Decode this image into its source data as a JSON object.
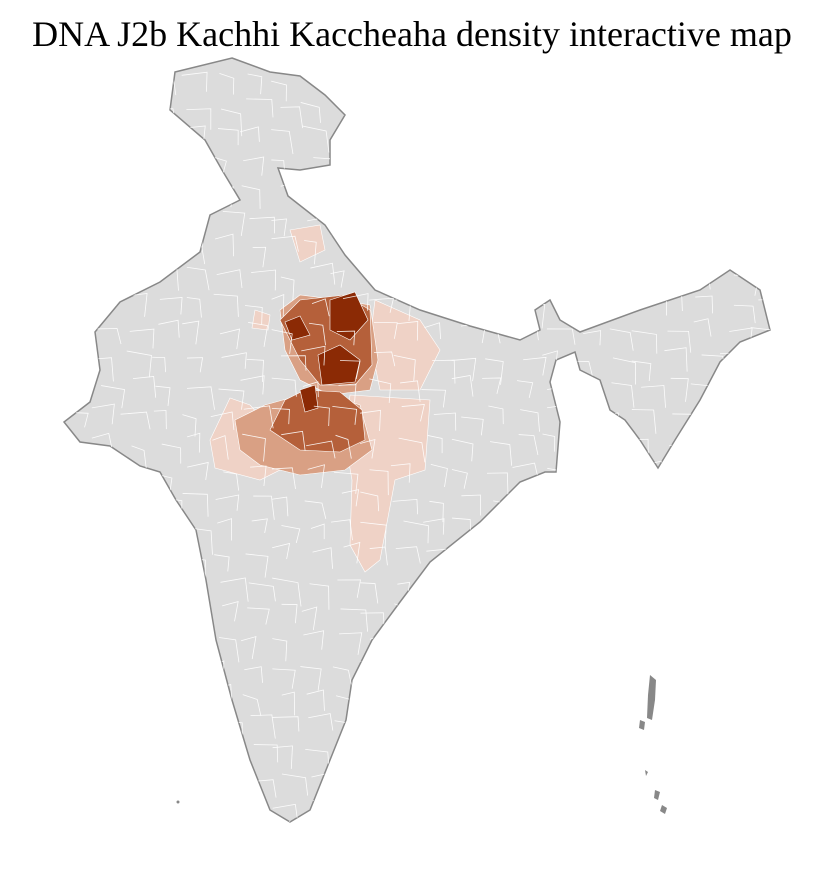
{
  "title": "DNA J2b Kachhi Kaccheaha density interactive map",
  "colors": {
    "land": "#dcdcdc",
    "border": "#888888",
    "district_lines": "#ffffff",
    "density_none": "#dcdcdc",
    "density_low": "#efd2c6",
    "density_mid_low": "#d9a084",
    "density_mid": "#b5603a",
    "density_high": "#8b2a05"
  }
}
